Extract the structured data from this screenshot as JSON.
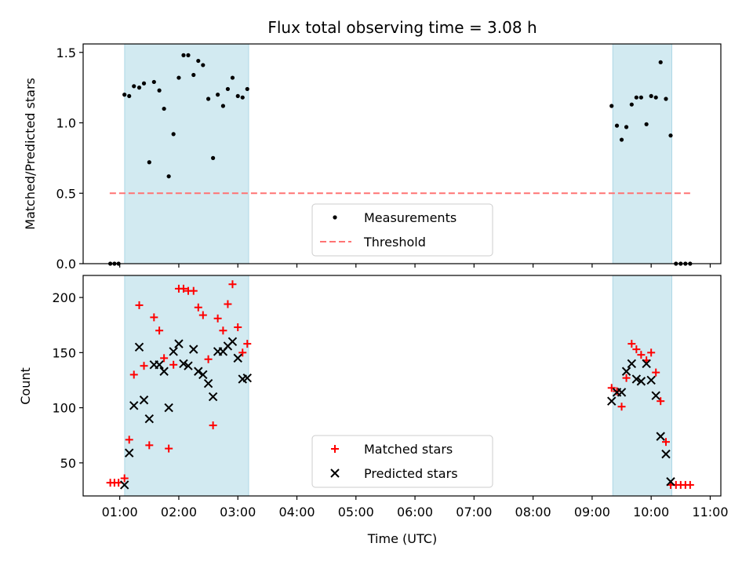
{
  "chart_data": {
    "title": "Flux total observing time = 3.08 h",
    "shaded_intervals": [
      [
        1.083,
        3.183
      ],
      [
        9.35,
        10.35
      ]
    ],
    "shade_color": "#add8e6",
    "x_ticks": [
      {
        "value": 1,
        "label": "01:00"
      },
      {
        "value": 2,
        "label": "02:00"
      },
      {
        "value": 3,
        "label": "03:00"
      },
      {
        "value": 4,
        "label": "04:00"
      },
      {
        "value": 5,
        "label": "05:00"
      },
      {
        "value": 6,
        "label": "06:00"
      },
      {
        "value": 7,
        "label": "07:00"
      },
      {
        "value": 8,
        "label": "08:00"
      },
      {
        "value": 9,
        "label": "09:00"
      },
      {
        "value": 10,
        "label": "10:00"
      },
      {
        "value": 11,
        "label": "11:00"
      }
    ],
    "xlabel": "Time (UTC)",
    "xlim": [
      0.38,
      11.18
    ],
    "panels": [
      {
        "type": "scatter",
        "ylabel": "Matched/Predicted stars",
        "ylim": [
          0,
          1.56
        ],
        "y_ticks": [
          {
            "value": 0,
            "label": "0.0"
          },
          {
            "value": 0.5,
            "label": "0.5"
          },
          {
            "value": 1.0,
            "label": "1.0"
          },
          {
            "value": 1.5,
            "label": "1.5"
          }
        ],
        "threshold": {
          "name": "Threshold",
          "y": 0.5,
          "x_range": [
            0.83,
            10.67
          ],
          "color": "#ff7373"
        },
        "legend": {
          "position": "lower-center",
          "entries": [
            "Measurements",
            "Threshold"
          ]
        },
        "series": [
          {
            "name": "Measurements",
            "color": "#000000",
            "x": [
              0.84,
              0.91,
              0.98,
              1.08,
              1.16,
              1.24,
              1.33,
              1.41,
              1.5,
              1.58,
              1.67,
              1.75,
              1.83,
              1.91,
              2.0,
              2.08,
              2.16,
              2.25,
              2.33,
              2.41,
              2.5,
              2.58,
              2.66,
              2.75,
              2.83,
              2.91,
              3.0,
              3.08,
              3.16,
              9.33,
              9.42,
              9.5,
              9.58,
              9.67,
              9.75,
              9.83,
              9.92,
              10.0,
              10.08,
              10.16,
              10.25,
              10.33,
              10.42,
              10.5,
              10.58,
              10.66
            ],
            "y": [
              0,
              0,
              0,
              1.2,
              1.19,
              1.26,
              1.25,
              1.28,
              0.72,
              1.29,
              1.23,
              1.1,
              0.62,
              0.92,
              1.32,
              1.48,
              1.48,
              1.34,
              1.44,
              1.41,
              1.17,
              0.75,
              1.2,
              1.12,
              1.24,
              1.32,
              1.19,
              1.18,
              1.24,
              1.12,
              0.98,
              0.88,
              0.97,
              1.13,
              1.18,
              1.18,
              0.99,
              1.19,
              1.18,
              1.43,
              1.17,
              0.91,
              0,
              0,
              0,
              0
            ]
          }
        ]
      },
      {
        "type": "scatter",
        "ylabel": "Count",
        "ylim": [
          20,
          220
        ],
        "y_ticks": [
          {
            "value": 50,
            "label": "50"
          },
          {
            "value": 100,
            "label": "100"
          },
          {
            "value": 150,
            "label": "150"
          },
          {
            "value": 200,
            "label": "200"
          }
        ],
        "legend": {
          "position": "lower-center",
          "entries": [
            "Matched stars",
            "Predicted stars"
          ]
        },
        "series": [
          {
            "name": "Matched stars",
            "marker": "plus",
            "color": "#ff0000",
            "x": [
              0.84,
              0.91,
              0.98,
              1.08,
              1.16,
              1.24,
              1.33,
              1.41,
              1.5,
              1.58,
              1.67,
              1.75,
              1.83,
              1.91,
              2.0,
              2.08,
              2.16,
              2.25,
              2.33,
              2.41,
              2.5,
              2.58,
              2.66,
              2.75,
              2.83,
              2.91,
              3.0,
              3.08,
              3.16,
              9.33,
              9.42,
              9.5,
              9.58,
              9.67,
              9.75,
              9.83,
              9.92,
              10.0,
              10.08,
              10.16,
              10.25,
              10.33,
              10.42,
              10.5,
              10.58,
              10.66
            ],
            "y": [
              32,
              32,
              32,
              36,
              71,
              130,
              193,
              138,
              66,
              182,
              170,
              145,
              63,
              139,
              208,
              208,
              206,
              206,
              191,
              184,
              144,
              84,
              181,
              170,
              194,
              212,
              173,
              150,
              158,
              118,
              115,
              101,
              127,
              158,
              153,
              148,
              143,
              150,
              132,
              106,
              69,
              30,
              30,
              30,
              30,
              30
            ]
          },
          {
            "name": "Predicted stars",
            "marker": "x",
            "color": "#000000",
            "x": [
              1.08,
              1.16,
              1.24,
              1.33,
              1.41,
              1.5,
              1.58,
              1.67,
              1.75,
              1.83,
              1.91,
              2.0,
              2.08,
              2.16,
              2.25,
              2.33,
              2.41,
              2.5,
              2.58,
              2.66,
              2.75,
              2.83,
              2.91,
              3.0,
              3.08,
              3.16,
              9.33,
              9.42,
              9.5,
              9.58,
              9.67,
              9.75,
              9.83,
              9.92,
              10.0,
              10.08,
              10.16,
              10.25,
              10.33
            ],
            "y": [
              30,
              59,
              102,
              155,
              107,
              90,
              139,
              139,
              133,
              100,
              151,
              158,
              140,
              138,
              153,
              133,
              130,
              122,
              110,
              151,
              151,
              156,
              160,
              145,
              126,
              127,
              106,
              114,
              114,
              133,
              140,
              126,
              124,
              140,
              125,
              111,
              74,
              58,
              33
            ]
          }
        ]
      }
    ]
  }
}
